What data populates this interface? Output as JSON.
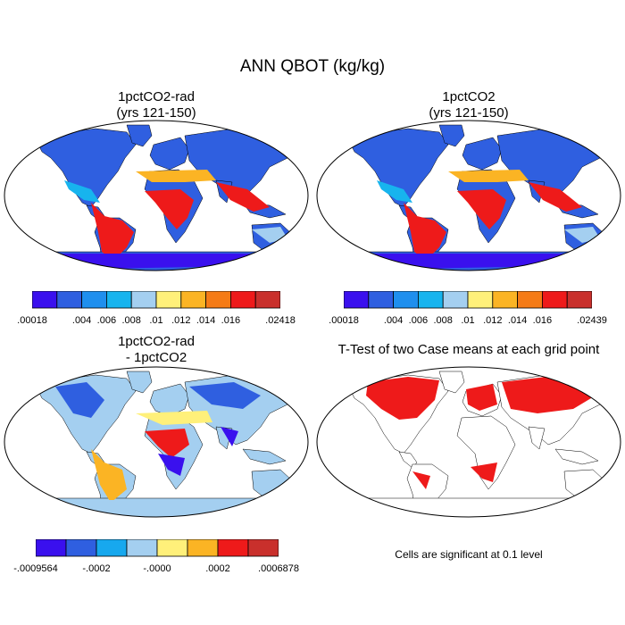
{
  "title": "ANN QBOT (kg/kg)",
  "panels": [
    {
      "id": "p1",
      "title_line1": "1pctCO2-rad",
      "title_line2": "(yrs 121-150)"
    },
    {
      "id": "p2",
      "title_line1": "1pctCO2",
      "title_line2": "(yrs 121-150)"
    },
    {
      "id": "p3",
      "title_line1": "1pctCO2-rad",
      "title_line2": "- 1pctCO2"
    },
    {
      "id": "p4",
      "title_line1": "T-Test of two Case means at each grid point",
      "title_line2": ""
    }
  ],
  "colorbars": {
    "cb1": {
      "colors": [
        "#3a10ee",
        "#2f5fe0",
        "#1f8fee",
        "#17b4ee",
        "#a4cff0",
        "#fff07a",
        "#fbb424",
        "#f57b16",
        "#ee1a1a",
        "#c9302c"
      ],
      "labels": [
        ".00018",
        ".004",
        ".006",
        ".008",
        ".01",
        ".012",
        ".014",
        ".016",
        ".02418"
      ]
    },
    "cb2": {
      "colors": [
        "#3a10ee",
        "#2f5fe0",
        "#1f8fee",
        "#17b4ee",
        "#a4cff0",
        "#fff07a",
        "#fbb424",
        "#f57b16",
        "#ee1a1a",
        "#c9302c"
      ],
      "labels": [
        ".00018",
        ".004",
        ".006",
        ".008",
        ".01",
        ".012",
        ".014",
        ".016",
        ".02439"
      ]
    },
    "cb3": {
      "colors": [
        "#3a10ee",
        "#2f5fe0",
        "#17a8ee",
        "#a4cff0",
        "#fff07a",
        "#fbb424",
        "#ee1a1a",
        "#c9302c"
      ],
      "labels": [
        "-.0009564",
        "-.0002",
        "-.0000",
        ".0002",
        ".0006878"
      ]
    }
  },
  "note": "Cells are significant at 0.1 level"
}
